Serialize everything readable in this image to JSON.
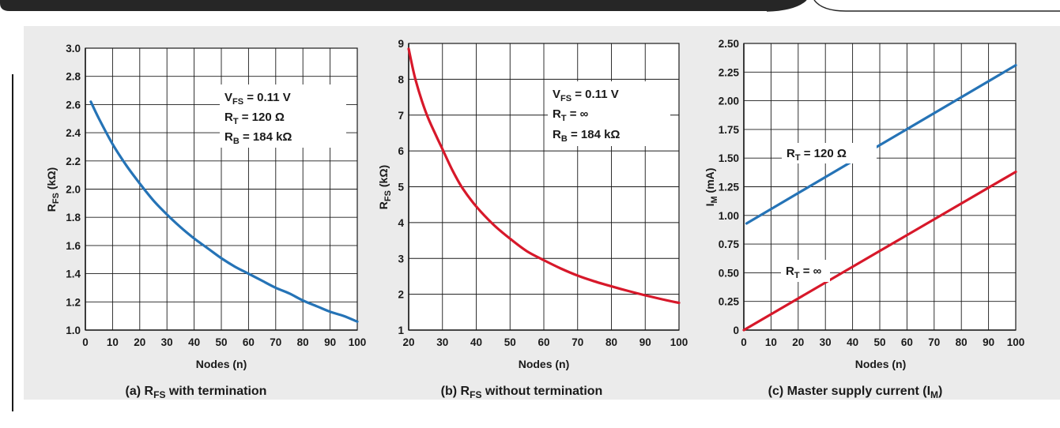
{
  "colors": {
    "blue": "#2573b6",
    "red": "#d7182a",
    "grid": "#1a1a1a",
    "background": "#ebebeb"
  },
  "chart_data": [
    {
      "type": "line",
      "caption": {
        "prefix": "(a) R",
        "sub": "FS",
        "suffix": " with termination"
      },
      "xlabel": "Nodes (n)",
      "ylabel": {
        "main": "R",
        "sub": "FS",
        "rest": " (kΩ)"
      },
      "xlim": [
        0,
        100
      ],
      "ylim": [
        1.0,
        3.0
      ],
      "xticks": [
        0,
        10,
        20,
        30,
        40,
        50,
        60,
        70,
        80,
        90,
        100
      ],
      "xtick_labels": [
        "0",
        "10",
        "20",
        "30",
        "40",
        "50",
        "60",
        "70",
        "80",
        "90",
        "100"
      ],
      "yticks": [
        1.0,
        1.2,
        1.4,
        1.6,
        1.8,
        2.0,
        2.2,
        2.4,
        2.6,
        2.8,
        3.0
      ],
      "ytick_labels": [
        "1.0",
        "1.2",
        "1.4",
        "1.6",
        "1.8",
        "2.0",
        "2.2",
        "2.4",
        "2.6",
        "2.8",
        "3.0"
      ],
      "grid": true,
      "series": [
        {
          "color": "#2573b6",
          "x": [
            2,
            5,
            10,
            15,
            20,
            25,
            30,
            35,
            40,
            45,
            50,
            55,
            60,
            65,
            70,
            75,
            80,
            85,
            90,
            95,
            100
          ],
          "y": [
            2.62,
            2.5,
            2.32,
            2.17,
            2.04,
            1.92,
            1.82,
            1.73,
            1.65,
            1.58,
            1.51,
            1.45,
            1.4,
            1.35,
            1.3,
            1.26,
            1.21,
            1.17,
            1.13,
            1.1,
            1.06
          ]
        }
      ],
      "annotations": [
        {
          "id": "vfs",
          "main": "V",
          "sub": "FS",
          "rest": " = 0.11 V"
        },
        {
          "id": "rt",
          "main": "R",
          "sub": "T",
          "rest": " = 120 Ω"
        },
        {
          "id": "rb",
          "main": "R",
          "sub": "B",
          "rest": " = 184 kΩ"
        }
      ]
    },
    {
      "type": "line",
      "caption": {
        "prefix": "(b) R",
        "sub": "FS",
        "suffix": " without termination"
      },
      "xlabel": "Nodes (n)",
      "ylabel": {
        "main": "R",
        "sub": "FS",
        "rest": " (kΩ)"
      },
      "xlim": [
        20,
        100
      ],
      "ylim": [
        1,
        9
      ],
      "xticks": [
        20,
        30,
        40,
        50,
        60,
        70,
        80,
        90,
        100
      ],
      "xtick_labels": [
        "20",
        "30",
        "40",
        "50",
        "60",
        "70",
        "80",
        "90",
        "100"
      ],
      "yticks": [
        1,
        2,
        3,
        4,
        5,
        6,
        7,
        8,
        9
      ],
      "ytick_labels": [
        "1",
        "2",
        "3",
        "4",
        "5",
        "6",
        "7",
        "8",
        "9"
      ],
      "grid": true,
      "series": [
        {
          "color": "#d7182a",
          "x": [
            20,
            22,
            25,
            28,
            30,
            33,
            36,
            40,
            45,
            50,
            55,
            60,
            65,
            70,
            75,
            80,
            85,
            90,
            95,
            100
          ],
          "y": [
            8.85,
            8.0,
            7.1,
            6.45,
            6.05,
            5.45,
            4.95,
            4.45,
            3.95,
            3.55,
            3.2,
            2.95,
            2.72,
            2.52,
            2.36,
            2.22,
            2.09,
            1.97,
            1.86,
            1.76
          ]
        }
      ],
      "annotations": [
        {
          "id": "vfs",
          "main": "V",
          "sub": "FS",
          "rest": " = 0.11 V"
        },
        {
          "id": "rt",
          "main": "R",
          "sub": "T",
          "rest": " = ∞"
        },
        {
          "id": "rb",
          "main": "R",
          "sub": "B",
          "rest": " = 184 kΩ"
        }
      ]
    },
    {
      "type": "line",
      "caption": {
        "prefix": "(c) Master supply current (I",
        "sub": "M",
        "suffix": ")"
      },
      "xlabel": "Nodes (n)",
      "ylabel": {
        "main": "I",
        "sub": "M",
        "rest": " (mA)"
      },
      "xlim": [
        0,
        100
      ],
      "ylim": [
        0,
        2.5
      ],
      "xticks": [
        0,
        10,
        20,
        30,
        40,
        50,
        60,
        70,
        80,
        90,
        100
      ],
      "xtick_labels": [
        "0",
        "10",
        "20",
        "30",
        "40",
        "50",
        "60",
        "70",
        "80",
        "90",
        "100"
      ],
      "yticks": [
        0,
        0.25,
        0.5,
        0.75,
        1.0,
        1.25,
        1.5,
        1.75,
        2.0,
        2.25,
        2.5
      ],
      "ytick_labels": [
        "0",
        "0.25",
        "0.50",
        "0.75",
        "1.00",
        "1.25",
        "1.50",
        "1.75",
        "2.00",
        "2.25",
        "2.50"
      ],
      "grid": true,
      "series": [
        {
          "color": "#2573b6",
          "x": [
            1,
            100
          ],
          "y": [
            0.93,
            2.31
          ]
        },
        {
          "color": "#d7182a",
          "x": [
            0,
            100
          ],
          "y": [
            0.0,
            1.38
          ]
        }
      ],
      "annotations": [
        {
          "id": "rt120",
          "main": "R",
          "sub": "T",
          "rest": " = 120 Ω"
        },
        {
          "id": "rtinf",
          "main": "R",
          "sub": "T",
          "rest": " = ∞"
        }
      ]
    }
  ]
}
